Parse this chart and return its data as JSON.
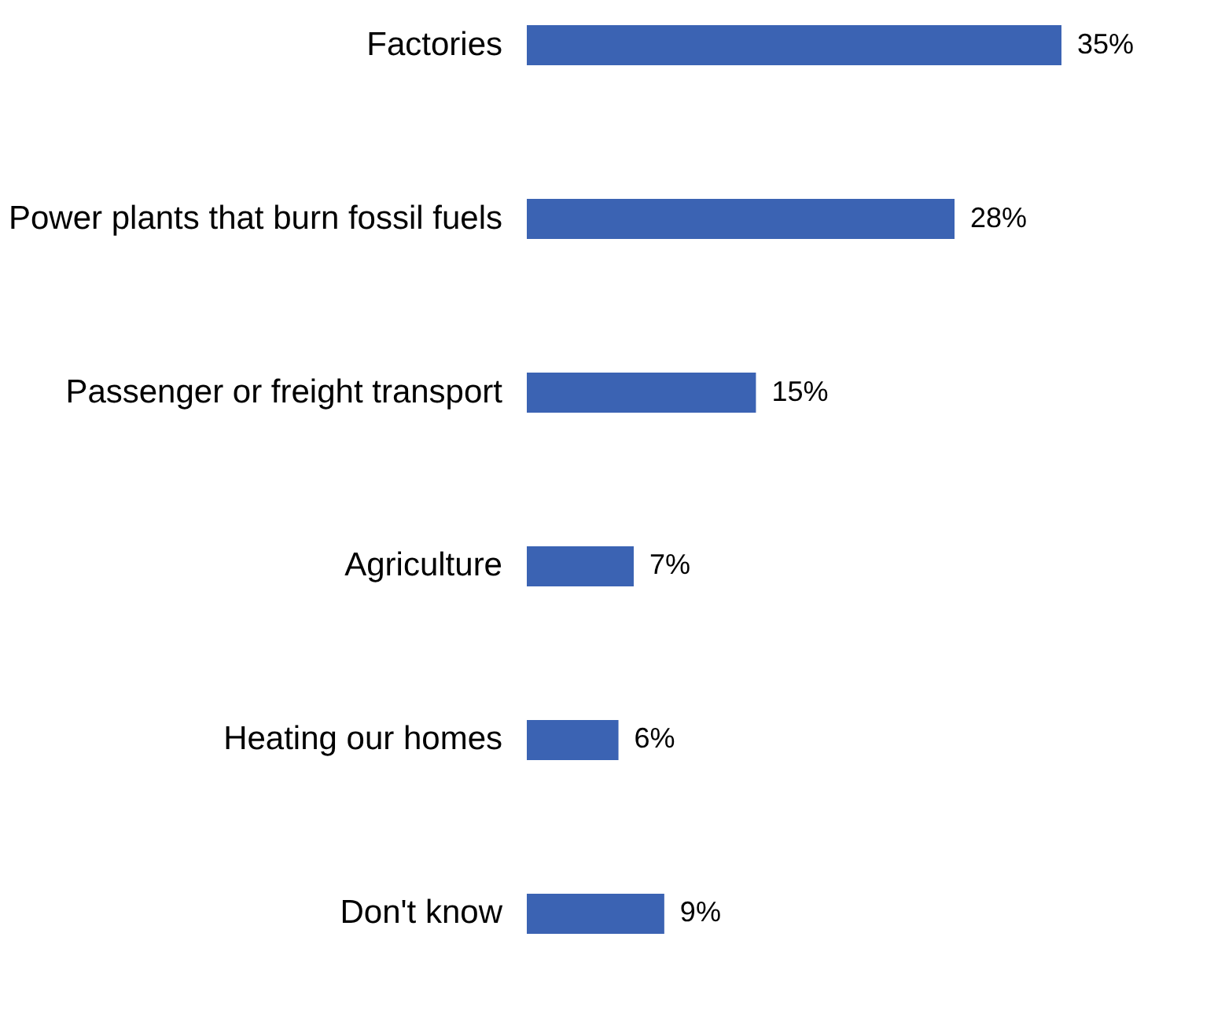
{
  "chart_data": {
    "type": "bar",
    "orientation": "horizontal",
    "categories": [
      "Factories",
      "Power plants that burn fossil fuels",
      "Passenger or freight transport",
      "Agriculture",
      "Heating our homes",
      "Don't know"
    ],
    "values": [
      35,
      28,
      15,
      7,
      6,
      9
    ],
    "value_labels": [
      "35%",
      "28%",
      "15%",
      "7%",
      "6%",
      "9%"
    ],
    "color": "#3b63b3"
  }
}
